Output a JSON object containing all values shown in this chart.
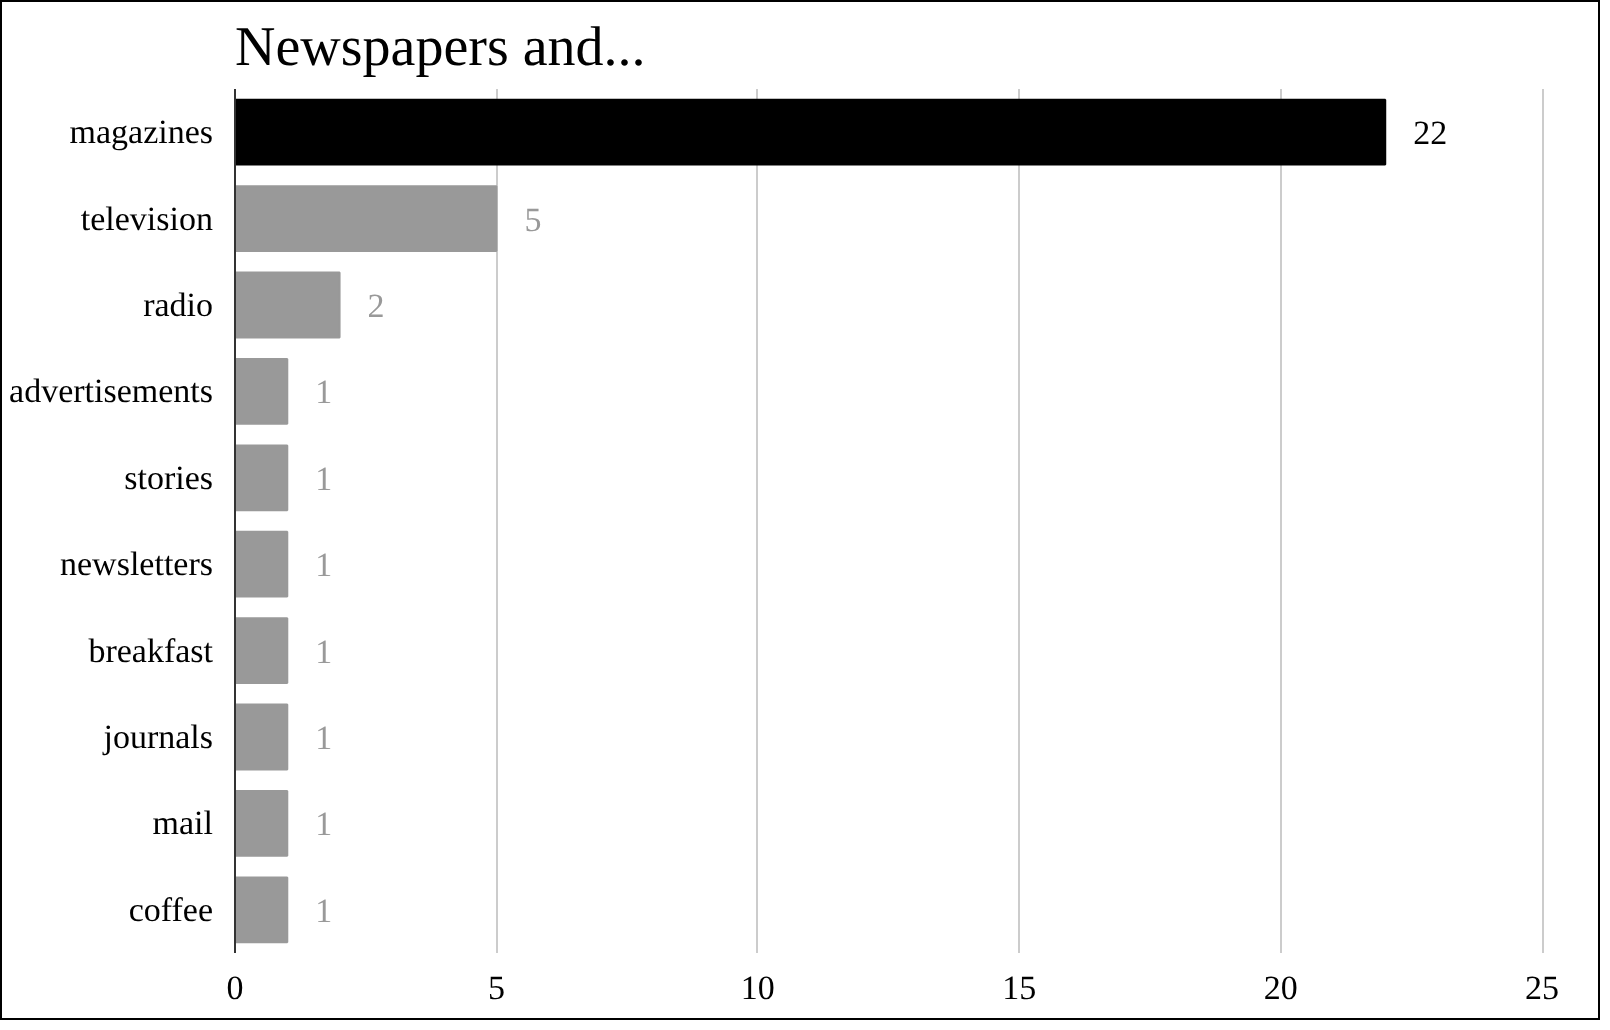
{
  "chart_data": {
    "type": "bar",
    "orientation": "horizontal",
    "title": "Newspapers and...",
    "categories": [
      "magazines",
      "television",
      "radio",
      "advertisements",
      "stories",
      "newsletters",
      "breakfast",
      "journals",
      "mail",
      "coffee"
    ],
    "values": [
      22,
      5,
      2,
      1,
      1,
      1,
      1,
      1,
      1,
      1
    ],
    "colors": [
      "#000000",
      "#999999",
      "#999999",
      "#999999",
      "#999999",
      "#999999",
      "#999999",
      "#999999",
      "#999999",
      "#999999"
    ],
    "xlim": [
      0,
      25
    ],
    "xticks": [
      0,
      5,
      10,
      15,
      20,
      25
    ],
    "grid": "x",
    "data_labels": true
  }
}
